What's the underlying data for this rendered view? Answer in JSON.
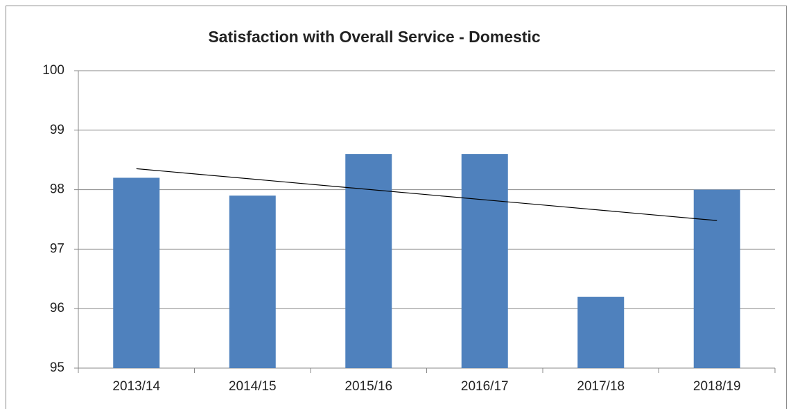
{
  "chart_data": {
    "type": "bar",
    "title": "Satisfaction with Overall Service - Domestic",
    "categories": [
      "2013/14",
      "2014/15",
      "2015/16",
      "2016/17",
      "2017/18",
      "2018/19"
    ],
    "values": [
      98.2,
      97.9,
      98.6,
      98.6,
      96.2,
      98.0
    ],
    "color": "#4f81bd",
    "ylim": [
      95,
      100
    ],
    "yticks": [
      95,
      96,
      97,
      98,
      99,
      100
    ],
    "grid": true,
    "trendline": "linear"
  }
}
